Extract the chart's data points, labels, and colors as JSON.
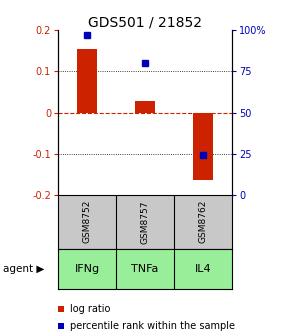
{
  "title": "GDS501 / 21852",
  "samples": [
    "GSM8752",
    "GSM8757",
    "GSM8762"
  ],
  "agents": [
    "IFNg",
    "TNFa",
    "IL4"
  ],
  "log_ratios": [
    0.155,
    0.028,
    -0.165
  ],
  "percentile_ranks": [
    97,
    80,
    24
  ],
  "ylim_left": [
    -0.2,
    0.2
  ],
  "ylim_right": [
    0,
    100
  ],
  "bar_color": "#cc2200",
  "dot_color": "#0000bb",
  "sample_bg": "#c8c8c8",
  "agent_bg": "#99ee99",
  "grid_lines": [
    0.1,
    0.0,
    -0.1
  ],
  "legend_items": [
    "log ratio",
    "percentile rank within the sample"
  ],
  "title_fontsize": 10,
  "tick_fontsize": 7,
  "bar_width": 0.35
}
